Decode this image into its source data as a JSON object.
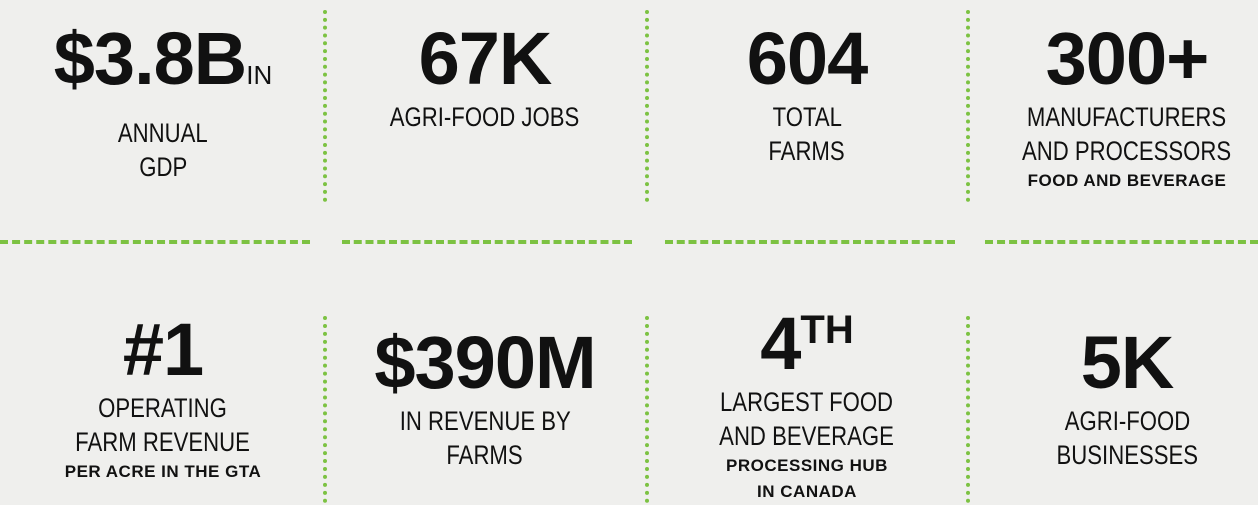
{
  "stats": [
    {
      "figure": "$3.8B",
      "suffix": "IN",
      "lines": [
        "ANNUAL",
        "GDP"
      ]
    },
    {
      "figure": "67K",
      "lines": [
        "AGRI-FOOD JOBS"
      ]
    },
    {
      "figure": "604",
      "lines": [
        "TOTAL",
        "FARMS"
      ]
    },
    {
      "figure": "300+",
      "lines": [
        "MANUFACTURERS",
        "AND PROCESSORS"
      ],
      "note": [
        "FOOD AND BEVERAGE"
      ]
    },
    {
      "figure": "#1",
      "lines": [
        "OPERATING",
        "FARM REVENUE"
      ],
      "note": [
        "PER ACRE IN THE GTA"
      ]
    },
    {
      "figure": "$390M",
      "lines": [
        "IN REVENUE BY",
        "FARMS"
      ]
    },
    {
      "figure": "4",
      "superscript": "TH",
      "lines": [
        "LARGEST FOOD",
        "AND BEVERAGE"
      ],
      "note": [
        "PROCESSING HUB",
        "IN CANADA"
      ]
    },
    {
      "figure": "5K",
      "lines": [
        "AGRI-FOOD",
        "BUSINESSES"
      ]
    }
  ]
}
